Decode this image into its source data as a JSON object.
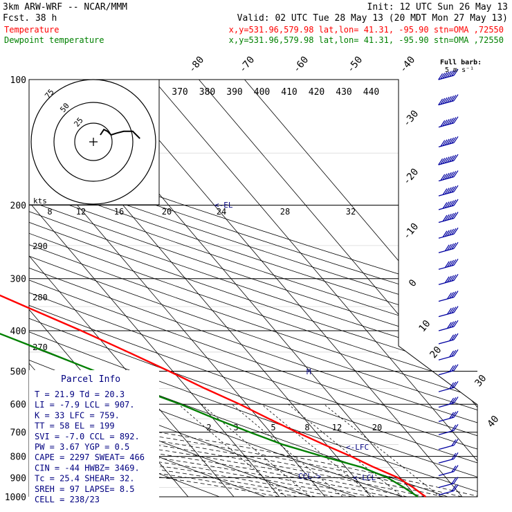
{
  "header": {
    "title": "3km ARW-WRF -- NCAR/MMM",
    "init": "Init: 12 UTC Sun 26 May 13",
    "fcst": "Fcst.    38 h",
    "valid": "Valid: 02 UTC Tue 28 May 13 (20 MDT Mon 27 May 13)",
    "temp_line": "Temperature",
    "dew_line": "Dewpoint temperature",
    "location": "x,y=531.96,579.98   lat,lon= 41.31, -95.90  stn=OMA ,72550"
  },
  "colors": {
    "temperature": "#ff0000",
    "dewpoint": "#008000",
    "barbs": "#0000a0",
    "parcel": "#000080"
  },
  "barb_legend": {
    "line1": "Full barb:",
    "line2": "5 m s⁻¹"
  },
  "hodograph": {
    "kts_label": "kts",
    "ring_labels": [
      "75",
      "50",
      "25"
    ]
  },
  "parcel_info": {
    "title": "Parcel Info",
    "rows": [
      "T  =   21.9  Td =  20.3",
      "LI =   -7.9  LCL =  907.",
      "K  =     33  LFC =  759.",
      "TT =     58  EL  =  199",
      "SVI =  -7.0  CCL =  892.",
      "PW =   3.67  YGP =   0.5",
      "CAPE =  2297  SWEAT=  466",
      "CIN =   -44  HWBZ= 3469.",
      "Tc =   25.4  SHEAR=  32.",
      "SREH =   97  LAPSE=  8.5",
      "CELL = 238/23"
    ]
  },
  "level_labels": {
    "el": "<-EL",
    "lfc": "<-LFC",
    "lcl": "<-LCL",
    "ccl": "CCL->",
    "m": "M"
  },
  "chart_data": {
    "type": "line",
    "title": "",
    "xlabel": "",
    "ylabel": "",
    "pressure_levels": [
      100,
      200,
      300,
      400,
      500,
      600,
      700,
      800,
      900,
      1000
    ],
    "isotherm_labels": [
      "-80",
      "-70",
      "-60",
      "-50",
      "-40",
      "-30",
      "-20",
      "-10",
      "0",
      "10",
      "20",
      "30",
      "40"
    ],
    "theta_e_labels": [
      "370",
      "380",
      "390",
      "400",
      "410",
      "420",
      "430",
      "440"
    ],
    "theta_labels": [
      "290",
      "280",
      "270"
    ],
    "mixing_ratio_labels": [
      "8",
      "12",
      "16",
      "20",
      "24",
      "28",
      "32"
    ],
    "mixing_ratio_labels_lower": [
      "2",
      "3",
      "5",
      "8",
      "12",
      "20"
    ],
    "series": [
      {
        "name": "Temperature",
        "points": [
          [
            1000,
            22.0
          ],
          [
            950,
            21.0
          ],
          [
            900,
            19.5
          ],
          [
            850,
            16.2
          ],
          [
            800,
            13.2
          ],
          [
            750,
            9.5
          ],
          [
            700,
            5.8
          ],
          [
            650,
            2.2
          ],
          [
            600,
            -1.5
          ],
          [
            550,
            -6.2
          ],
          [
            500,
            -10.8
          ],
          [
            450,
            -16.2
          ],
          [
            400,
            -22.5
          ],
          [
            350,
            -30.2
          ],
          [
            300,
            -39.0
          ],
          [
            275,
            -44.5
          ],
          [
            250,
            -49.0
          ],
          [
            225,
            -54.0
          ],
          [
            200,
            -59.5
          ],
          [
            175,
            -62.5
          ],
          [
            150,
            -63.0
          ],
          [
            125,
            -64.5
          ],
          [
            100,
            -68.5
          ]
        ]
      },
      {
        "name": "Dewpoint temperature",
        "points": [
          [
            1000,
            20.3
          ],
          [
            950,
            19.0
          ],
          [
            900,
            17.2
          ],
          [
            850,
            13.5
          ],
          [
            800,
            7.0
          ],
          [
            750,
            0.5
          ],
          [
            700,
            -4.5
          ],
          [
            650,
            -9.5
          ],
          [
            600,
            -14.5
          ],
          [
            550,
            -21.0
          ],
          [
            500,
            -27.0
          ],
          [
            450,
            -34.0
          ],
          [
            400,
            -42.0
          ],
          [
            350,
            -47.0
          ],
          [
            300,
            -50.0
          ],
          [
            275,
            -53.5
          ],
          [
            250,
            -58.0
          ],
          [
            225,
            -62.0
          ],
          [
            200,
            -63.5
          ],
          [
            175,
            -66.0
          ],
          [
            150,
            -71.0
          ],
          [
            125,
            -73.0
          ],
          [
            100,
            -77.0
          ]
        ]
      }
    ],
    "wind_barbs": [
      {
        "p": 100,
        "speed_ms": 40
      },
      {
        "p": 115,
        "speed_ms": 40
      },
      {
        "p": 130,
        "speed_ms": 35
      },
      {
        "p": 145,
        "speed_ms": 35
      },
      {
        "p": 160,
        "speed_ms": 40
      },
      {
        "p": 175,
        "speed_ms": 35
      },
      {
        "p": 190,
        "speed_ms": 30
      },
      {
        "p": 205,
        "speed_ms": 30
      },
      {
        "p": 220,
        "speed_ms": 30
      },
      {
        "p": 240,
        "speed_ms": 30
      },
      {
        "p": 260,
        "speed_ms": 25
      },
      {
        "p": 285,
        "speed_ms": 25
      },
      {
        "p": 310,
        "speed_ms": 25
      },
      {
        "p": 340,
        "speed_ms": 20
      },
      {
        "p": 370,
        "speed_ms": 20
      },
      {
        "p": 400,
        "speed_ms": 20
      },
      {
        "p": 430,
        "speed_ms": 15
      },
      {
        "p": 470,
        "speed_ms": 15
      },
      {
        "p": 510,
        "speed_ms": 15
      },
      {
        "p": 560,
        "speed_ms": 15
      },
      {
        "p": 610,
        "speed_ms": 15
      },
      {
        "p": 660,
        "speed_ms": 15
      },
      {
        "p": 710,
        "speed_ms": 10
      },
      {
        "p": 770,
        "speed_ms": 10
      },
      {
        "p": 830,
        "speed_ms": 10
      },
      {
        "p": 890,
        "speed_ms": 10
      },
      {
        "p": 950,
        "speed_ms": 10
      },
      {
        "p": 990,
        "speed_ms": 10
      }
    ],
    "hodograph_path": [
      [
        0,
        0
      ],
      [
        2,
        3
      ],
      [
        4,
        2
      ],
      [
        6,
        0
      ],
      [
        9,
        1
      ],
      [
        13,
        2
      ],
      [
        18,
        2
      ],
      [
        22,
        -2
      ]
    ]
  }
}
